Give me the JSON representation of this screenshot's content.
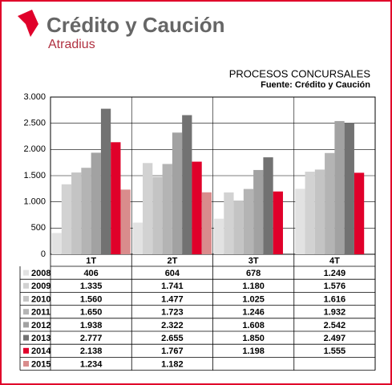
{
  "logo": {
    "name": "Crédito y Caución",
    "sub": "Atradius"
  },
  "chart_data": {
    "type": "bar",
    "title": "PROCESOS CONCURSALES",
    "subtitle": "Fuente: Crédito y Caución",
    "categories": [
      "1T",
      "2T",
      "3T",
      "4T"
    ],
    "ylim": [
      0,
      3000
    ],
    "yticks": [
      0,
      500,
      {
        "value": 1000,
        "label": "1.000"
      },
      {
        "value": 1500,
        "label": "1.500"
      },
      {
        "value": 2000,
        "label": "2.000"
      },
      {
        "value": 2500,
        "label": "2.500"
      },
      {
        "value": 3000,
        "label": "3.000"
      }
    ],
    "grid": true,
    "series": [
      {
        "name": "2008",
        "color": "#e2e2e2",
        "values": [
          406,
          604,
          678,
          1249
        ],
        "value_labels": [
          "406",
          "604",
          "678",
          "1.249"
        ]
      },
      {
        "name": "2009",
        "color": "#d2d2d2",
        "values": [
          1335,
          1741,
          1180,
          1576
        ],
        "value_labels": [
          "1.335",
          "1.741",
          "1.180",
          "1.576"
        ]
      },
      {
        "name": "2010",
        "color": "#c4c4c4",
        "values": [
          1560,
          1477,
          1025,
          1616
        ],
        "value_labels": [
          "1.560",
          "1.477",
          "1.025",
          "1.616"
        ]
      },
      {
        "name": "2011",
        "color": "#b4b4b4",
        "values": [
          1650,
          1723,
          1246,
          1932
        ],
        "value_labels": [
          "1.650",
          "1.723",
          "1.246",
          "1.932"
        ]
      },
      {
        "name": "2012",
        "color": "#a2a2a2",
        "values": [
          1938,
          2322,
          1608,
          2542
        ],
        "value_labels": [
          "1.938",
          "2.322",
          "1.608",
          "2.542"
        ]
      },
      {
        "name": "2013",
        "color": "#727272",
        "values": [
          2777,
          2655,
          1850,
          2497
        ],
        "value_labels": [
          "2.777",
          "2.655",
          "1.850",
          "2.497"
        ]
      },
      {
        "name": "2014",
        "color": "#e0002a",
        "values": [
          2138,
          1767,
          1198,
          1555
        ],
        "value_labels": [
          "2.138",
          "1.767",
          "1.198",
          "1.555"
        ]
      },
      {
        "name": "2015",
        "color": "#d98c8c",
        "values": [
          1234,
          1182,
          null,
          null
        ],
        "value_labels": [
          "1.234",
          "1.182",
          null,
          null
        ]
      }
    ]
  }
}
